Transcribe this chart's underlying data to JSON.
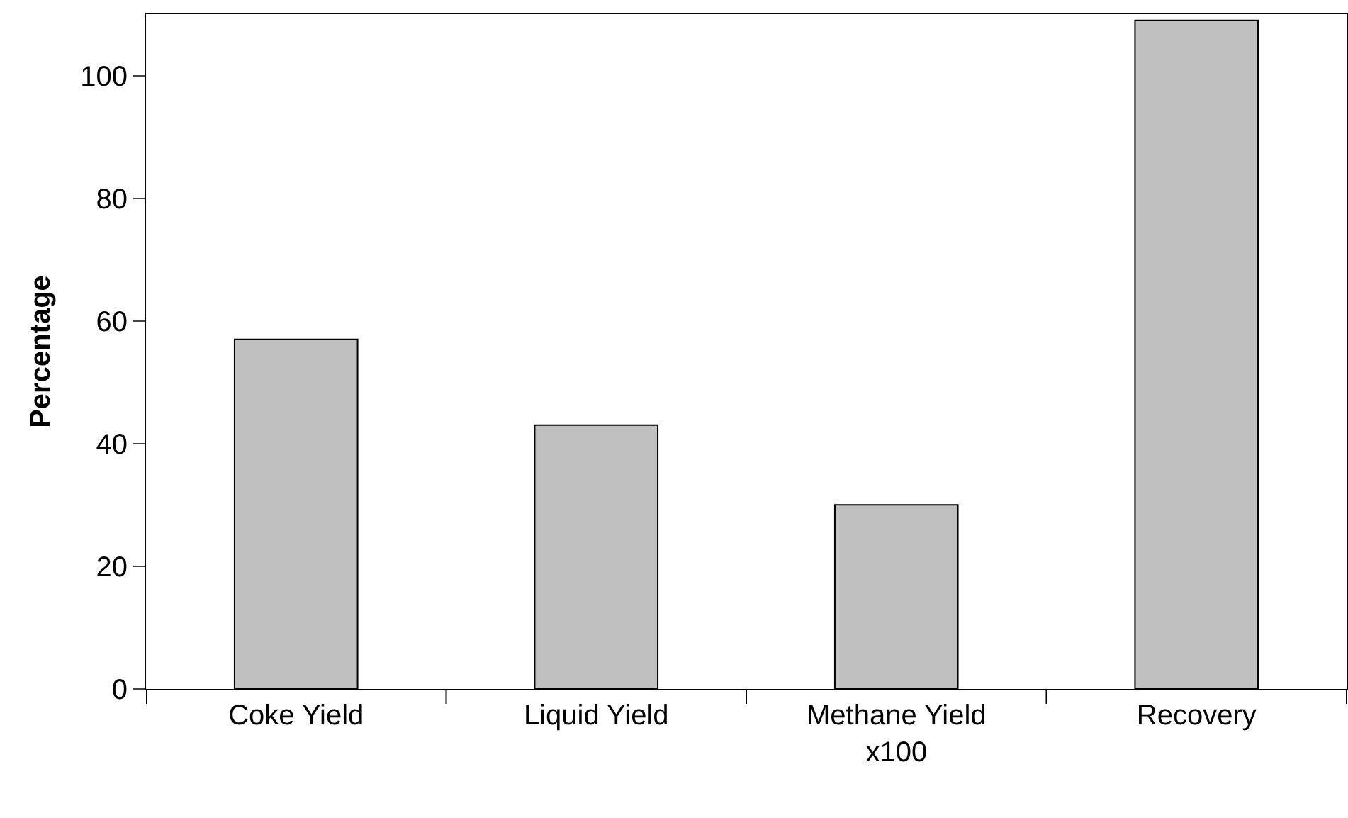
{
  "chart_data": {
    "type": "bar",
    "ylabel": "Percentage",
    "categories": [
      "Coke Yield",
      "Liquid Yield",
      "Methane Yield\nx100",
      "Recovery"
    ],
    "values": [
      57,
      43,
      30,
      109
    ],
    "color": "#c0c0c0",
    "ylim": [
      0,
      110
    ],
    "yticks": [
      0,
      20,
      40,
      60,
      80,
      100
    ]
  }
}
